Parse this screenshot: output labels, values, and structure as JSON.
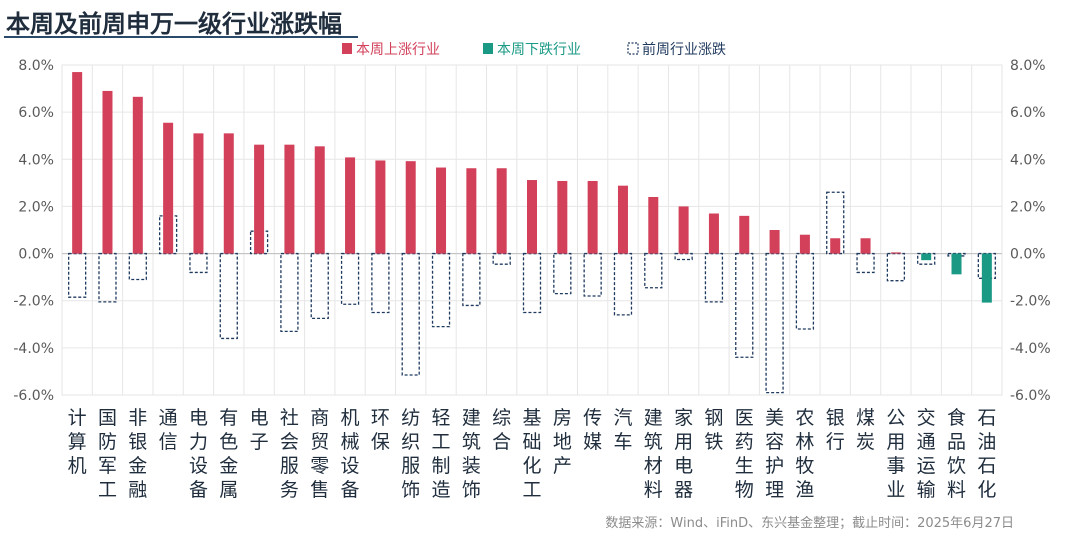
{
  "title": "本周及前周申万一级行业涨跌幅",
  "source_note": "数据来源：Wind、iFinD、东兴基金整理；截止时间：2025年6月27日",
  "colors": {
    "up": "#d2405a",
    "down": "#1a9985",
    "prev_outline": "#1f3a5f",
    "axis_text": "#595959",
    "grid": "#e6e6e6"
  },
  "chart_data": {
    "type": "bar",
    "title": "本周及前周申万一级行业涨跌幅",
    "legend_position": "top",
    "grid": true,
    "ylim": [
      -6,
      8
    ],
    "yticks": [
      8,
      6,
      4,
      2,
      0,
      -2,
      -4,
      -6
    ],
    "yticks_left": [
      "8.0%",
      "6.0%",
      "4.0%",
      "2.0%",
      "0.0%",
      "-2.0%",
      "-4.0%",
      "-6.0%"
    ],
    "yticks_right": [
      "8.0%",
      "6.0%",
      "4.0%",
      "2.0%",
      "0.0%",
      "-2.0%",
      "-4.0%",
      "-6.0%"
    ],
    "categories": [
      "计算机",
      "国防军工",
      "非银金融",
      "通信",
      "电力设备",
      "有色金属",
      "电子",
      "社会服务",
      "商贸零售",
      "机械设备",
      "环保",
      "纺织服饰",
      "轻工制造",
      "建筑装饰",
      "综合",
      "基础化工",
      "房地产",
      "传媒",
      "汽车",
      "建筑材料",
      "家用电器",
      "钢铁",
      "医药生物",
      "美容护理",
      "农林牧渔",
      "银行",
      "煤炭",
      "公用事业",
      "交通运输",
      "食品饮料",
      "石油石化"
    ],
    "series": [
      {
        "name": "本周上涨行业",
        "kind": "up",
        "values": [
          7.7,
          6.9,
          6.65,
          5.55,
          5.1,
          5.1,
          4.62,
          4.62,
          4.55,
          4.08,
          3.95,
          3.92,
          3.65,
          3.62,
          3.62,
          3.12,
          3.08,
          3.08,
          2.88,
          2.4,
          2.0,
          1.7,
          1.6,
          1.0,
          0.8,
          0.65,
          0.65,
          0.05,
          null,
          null,
          null
        ]
      },
      {
        "name": "本周下跌行业",
        "kind": "down",
        "values": [
          null,
          null,
          null,
          null,
          null,
          null,
          null,
          null,
          null,
          null,
          null,
          null,
          null,
          null,
          null,
          null,
          null,
          null,
          null,
          null,
          null,
          null,
          null,
          null,
          null,
          null,
          null,
          null,
          -0.28,
          -0.88,
          -2.08
        ]
      },
      {
        "name": "前周行业涨跌",
        "kind": "prev",
        "values": [
          -1.85,
          -2.05,
          -1.1,
          1.6,
          -0.8,
          -3.6,
          0.95,
          -3.3,
          -2.75,
          -2.15,
          -2.5,
          -5.15,
          -3.1,
          -2.2,
          -0.45,
          -2.5,
          -1.7,
          -1.8,
          -2.6,
          -1.45,
          -0.25,
          -2.05,
          -4.4,
          -5.9,
          -3.2,
          2.6,
          -0.8,
          -1.15,
          -0.45,
          -0.1,
          -1.05
        ]
      }
    ]
  }
}
